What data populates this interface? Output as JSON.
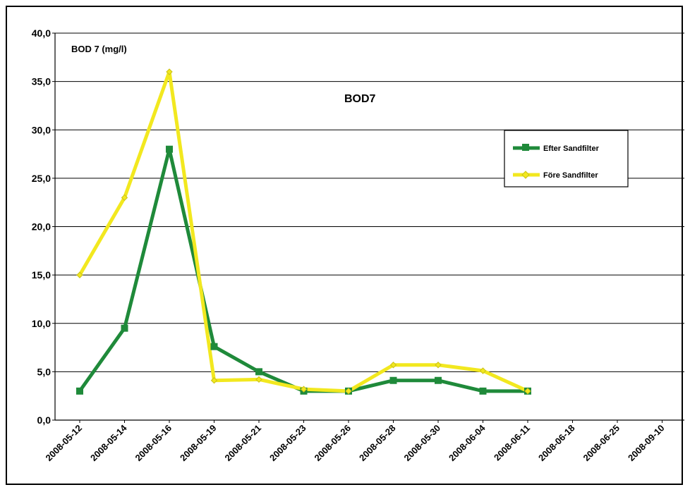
{
  "chart_data": {
    "type": "line",
    "title": "BOD7",
    "xlabel": "",
    "ylabel": "BOD 7  (mg/l)",
    "categories": [
      "2008-05-12",
      "2008-05-14",
      "2008-05-16",
      "2008-05-19",
      "2008-05-21",
      "2008-05-23",
      "2008-05-26",
      "2008-05-28",
      "2008-05-30",
      "2008-06-04",
      "2008-06-11",
      "2008-06-18",
      "2008-06-25",
      "2008-09-10"
    ],
    "series": [
      {
        "name": "Efter Sandfilter",
        "color": "#1f8a3a",
        "marker": "square",
        "values": [
          3.0,
          9.5,
          28.0,
          7.6,
          5.0,
          3.0,
          3.0,
          4.1,
          4.1,
          3.0,
          3.0,
          null,
          null,
          null
        ]
      },
      {
        "name": "Före Sandfilter",
        "color": "#f2e81f",
        "marker": "diamond",
        "values": [
          15.0,
          23.0,
          36.0,
          4.1,
          4.2,
          3.2,
          3.0,
          5.7,
          5.7,
          5.1,
          3.0,
          null,
          null,
          null
        ]
      }
    ],
    "ylim": [
      0,
      40
    ],
    "yticks": [
      "0,0",
      "5,0",
      "10,0",
      "15,0",
      "20,0",
      "25,0",
      "30,0",
      "35,0",
      "40,0"
    ],
    "grid": true,
    "legend_position": "right"
  }
}
